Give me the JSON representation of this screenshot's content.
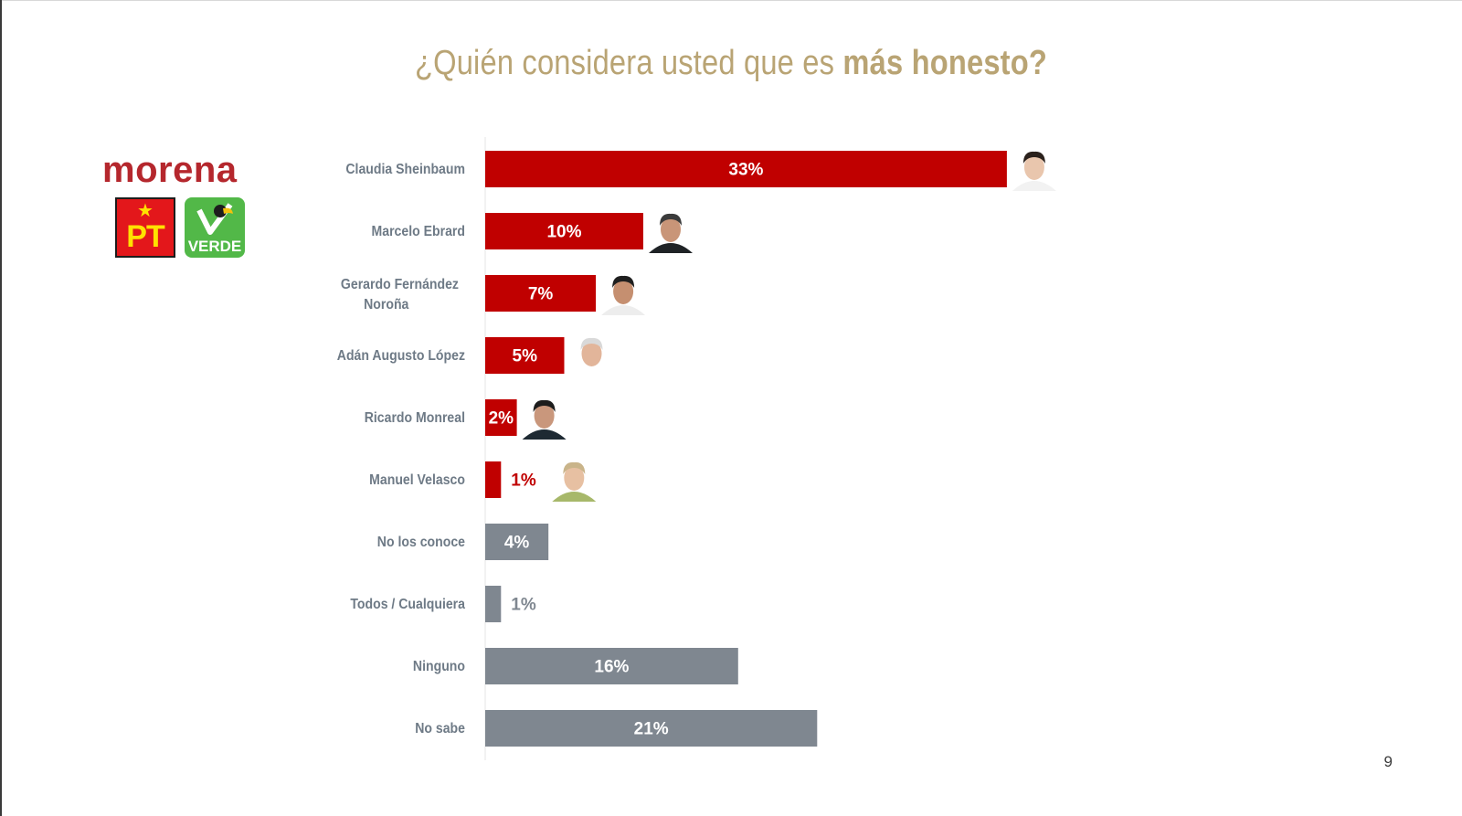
{
  "title": {
    "regular": "¿Quién considera usted que es ",
    "bold": "más honesto?"
  },
  "logos": {
    "morena": "morena",
    "pt": "PT",
    "verde": "VERDE"
  },
  "page_number": "9",
  "colors": {
    "title": "#b9a474",
    "candidate_bar": "#c00000",
    "other_bar": "#7f8790",
    "category_label": "#6e7a86"
  },
  "chart_data": {
    "type": "bar",
    "orientation": "horizontal",
    "categories": [
      "Claudia Sheinbaum",
      "Marcelo Ebrard",
      "Gerardo Fernández Noroña",
      "Adán Augusto López",
      "Ricardo Monreal",
      "Manuel Velasco",
      "No los conoce",
      "Todos / Cualquiera",
      "Ninguno",
      "No sabe"
    ],
    "values": [
      33,
      10,
      7,
      5,
      2,
      1,
      4,
      1,
      16,
      21
    ],
    "value_labels": [
      "33%",
      "10%",
      "7%",
      "5%",
      "2%",
      "1%",
      "4%",
      "1%",
      "16%",
      "21%"
    ],
    "bar_groups": [
      "candidate",
      "candidate",
      "candidate",
      "candidate",
      "candidate",
      "candidate",
      "other",
      "other",
      "other",
      "other"
    ],
    "photos": [
      "portrait",
      "portrait",
      "portrait",
      "portrait",
      "portrait",
      "portrait",
      "",
      "",
      "",
      ""
    ],
    "unit": "%",
    "title": "¿Quién considera usted que es más honesto?",
    "xlabel": "",
    "ylabel": "",
    "xlim": [
      0,
      35
    ],
    "grid": false,
    "legend": "none"
  }
}
